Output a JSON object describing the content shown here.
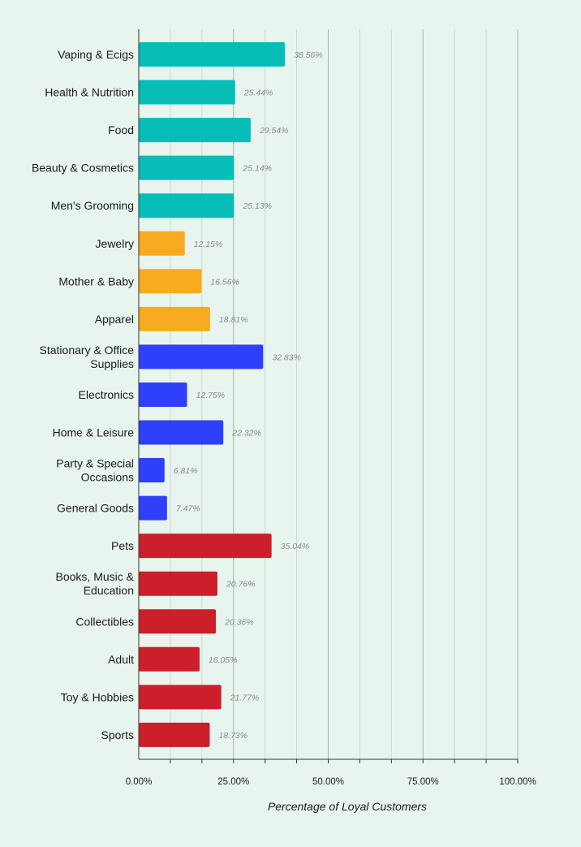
{
  "chart_data": {
    "type": "bar",
    "orientation": "horizontal",
    "categories": [
      "Vaping & Ecigs",
      "Health & Nutrition",
      "Food",
      "Beauty & Cosmetics",
      "Men's Grooming",
      "Jewelry",
      "Mother & Baby",
      "Apparel",
      "Stationary & Office Supplies",
      "Electronics",
      "Home & Leisure",
      "Party & Special Occasions",
      "General Goods",
      "Pets",
      "Books, Music & Education",
      "Collectibles",
      "Adult",
      "Toy & Hobbies",
      "Sports"
    ],
    "values": [
      38.56,
      25.44,
      29.54,
      25.14,
      25.13,
      12.15,
      16.56,
      18.81,
      32.83,
      12.75,
      22.32,
      6.81,
      7.47,
      35.04,
      20.76,
      20.36,
      16.05,
      21.77,
      18.73
    ],
    "value_labels": [
      "38.56%",
      "25.44%",
      "29.54%",
      "25.14%",
      "25.13%",
      "12.15%",
      "16.56%",
      "18.81%",
      "32.83%",
      "12.75%",
      "22.32%",
      "6.81%",
      "7.47%",
      "35.04%",
      "20.76%",
      "20.36%",
      "16.05%",
      "21.77%",
      "18.73%"
    ],
    "bar_colors": [
      "#06bdb8",
      "#06bdb8",
      "#06bdb8",
      "#06bdb8",
      "#06bdb8",
      "#f8ab1e",
      "#f8ab1e",
      "#f8ab1e",
      "#2f40fa",
      "#2f40fa",
      "#2f40fa",
      "#2f40fa",
      "#2f40fa",
      "#cc1f2b",
      "#cc1f2b",
      "#cc1f2b",
      "#cc1f2b",
      "#cc1f2b",
      "#cc1f2b"
    ],
    "xlabel": "Percentage of Loyal Customers",
    "ylabel": "",
    "xlim": [
      0,
      100
    ],
    "xticks": [
      0,
      25,
      50,
      75,
      100
    ],
    "xtick_labels": [
      "0.00%",
      "25.00%",
      "50.00%",
      "75.00%",
      "100.00%"
    ],
    "grid": true,
    "legend": "none"
  }
}
